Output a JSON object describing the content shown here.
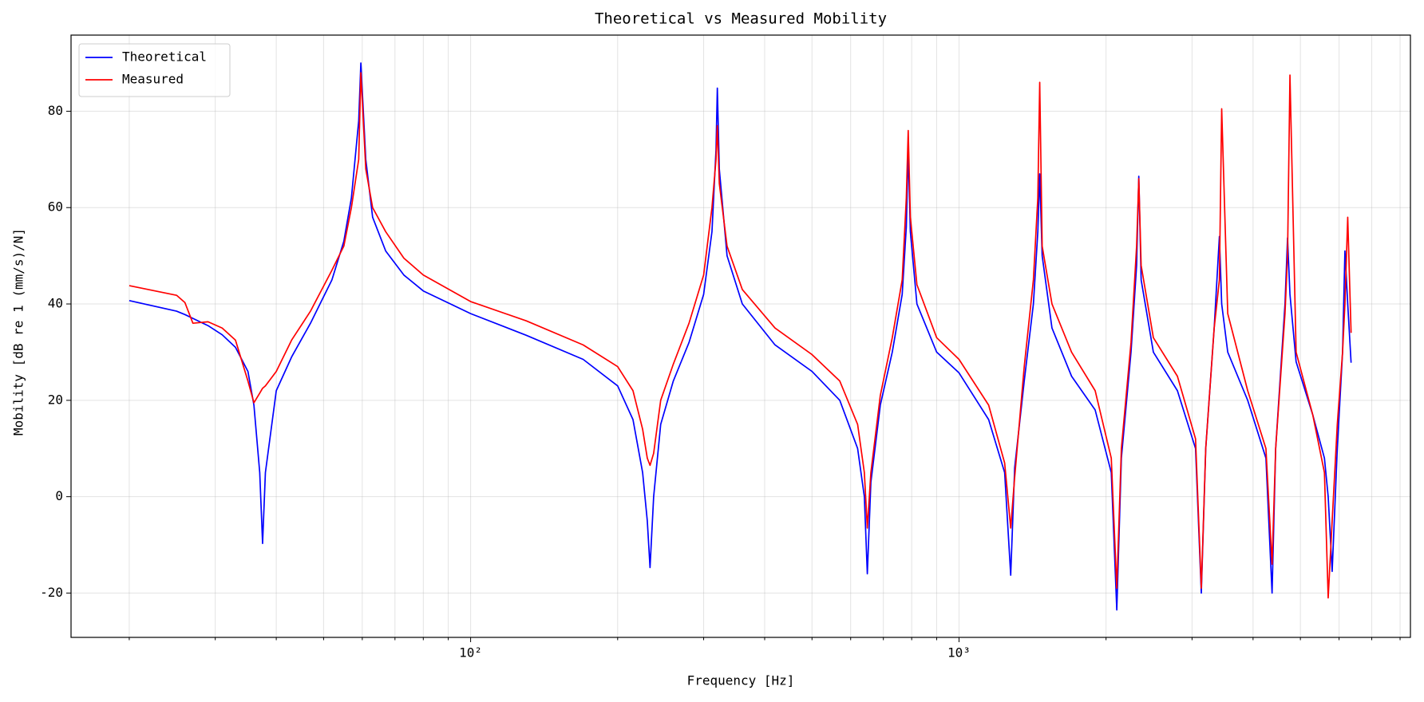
{
  "chart_data": {
    "type": "line",
    "title": "Theoretical vs Measured Mobility",
    "x_label": "Frequency [Hz]",
    "y_label": "Mobility [dB re 1 (mm/s)/N]",
    "x_scale": "log",
    "grid": true,
    "legend": "upper left",
    "xlim": [
      15.2,
      8400
    ],
    "ylim": [
      -29.2,
      95.8
    ],
    "xticks": [
      {
        "value": 100,
        "label": "10²"
      },
      {
        "value": 1000,
        "label": "10³"
      }
    ],
    "xminorticks": [
      20,
      30,
      40,
      50,
      60,
      70,
      80,
      90,
      200,
      300,
      400,
      500,
      600,
      700,
      800,
      900,
      2000,
      3000,
      4000,
      5000,
      6000,
      7000,
      8000
    ],
    "yticks": [
      -20,
      0,
      20,
      40,
      60,
      80
    ],
    "x": [
      20,
      25,
      26,
      27,
      29,
      31,
      33,
      35,
      36,
      37,
      37.5,
      38,
      40,
      43,
      47,
      52,
      55,
      57,
      59,
      59.6,
      61,
      63,
      67,
      73,
      80,
      100,
      130,
      170,
      200,
      215,
      225,
      230,
      233,
      237,
      245,
      260,
      280,
      300,
      312,
      318,
      320,
      323,
      335,
      360,
      420,
      500,
      570,
      620,
      640,
      649,
      660,
      690,
      730,
      765,
      780,
      787,
      795,
      820,
      900,
      1000,
      1150,
      1240,
      1276,
      1300,
      1360,
      1420,
      1450,
      1463,
      1480,
      1550,
      1700,
      1900,
      2050,
      2104,
      2150,
      2250,
      2310,
      2334,
      2360,
      2500,
      2800,
      3050,
      3134,
      3200,
      3330,
      3413,
      3450,
      3550,
      3900,
      4250,
      4375,
      4450,
      4650,
      4706,
      4760,
      4900,
      5300,
      5600,
      5700,
      5808,
      5950,
      6100,
      6168,
      6250,
      6350
    ],
    "series": [
      {
        "name": "Theoretical",
        "color": "#0000ff",
        "values": [
          40.7,
          38.5,
          37.8,
          37,
          35.5,
          33.6,
          31,
          26,
          19,
          5,
          -9.7,
          5,
          22,
          29,
          36,
          45,
          53,
          62,
          78,
          90,
          70,
          58,
          51,
          46,
          42.7,
          38,
          33.5,
          28.5,
          23,
          16,
          5,
          -5,
          -14.7,
          0,
          15,
          24,
          32,
          42,
          55,
          72,
          84.8,
          68,
          50,
          40,
          31.5,
          26,
          20,
          10,
          0,
          -16,
          3,
          19,
          30,
          42,
          56,
          72,
          55,
          40,
          30,
          25.7,
          16,
          5,
          -16.3,
          6,
          24,
          40,
          55,
          67,
          50,
          35,
          25,
          18,
          5,
          -23.5,
          8,
          30,
          48,
          66.5,
          45,
          30,
          22,
          10,
          -20,
          10,
          35,
          54,
          40,
          30,
          20,
          8,
          -20,
          10,
          40,
          53.7,
          42,
          28,
          17,
          8,
          0,
          -15.5,
          10,
          30,
          51,
          40,
          27.8
        ]
      },
      {
        "name": "Measured",
        "color": "#ff0000",
        "values": [
          43.8,
          41.8,
          40.3,
          36,
          36.3,
          35,
          32.5,
          24,
          19.5,
          21.5,
          22.5,
          23,
          26,
          32.5,
          38.5,
          47,
          52,
          60,
          70,
          88,
          68,
          60,
          55,
          49.5,
          46,
          40.5,
          36.5,
          31.5,
          27,
          22,
          14,
          8,
          6.5,
          9,
          20,
          27.5,
          36,
          46,
          60,
          70,
          77,
          65,
          52,
          43,
          35,
          29.5,
          24,
          15,
          5,
          -6.5,
          5,
          21,
          33,
          45,
          62,
          76,
          58,
          44,
          33,
          28.5,
          19,
          7,
          -6.5,
          4,
          27,
          45,
          62,
          86,
          52,
          40,
          30,
          22,
          8,
          -19,
          10,
          32,
          52,
          66,
          48,
          33,
          25,
          12,
          -19,
          10,
          35,
          45,
          80.5,
          38,
          22,
          10,
          -14,
          10,
          38,
          50,
          87.5,
          30,
          17,
          5,
          -21,
          -5,
          15,
          30,
          40,
          58,
          34
        ]
      }
    ]
  }
}
